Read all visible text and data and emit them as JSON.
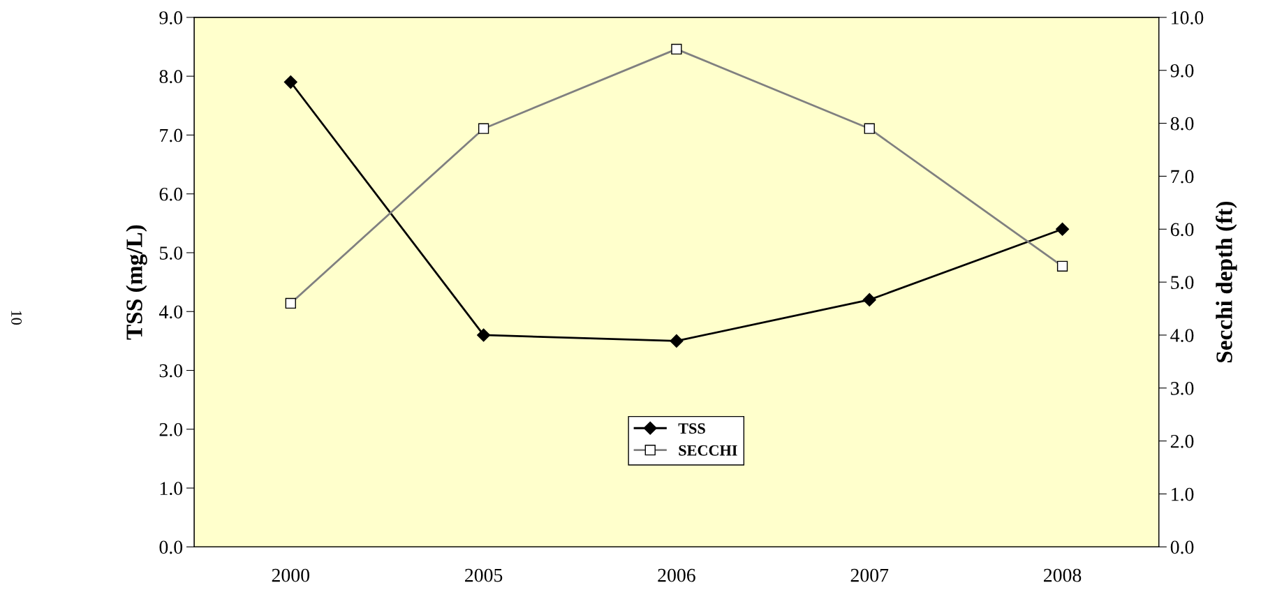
{
  "chart_data": {
    "type": "line",
    "categories": [
      "2000",
      "2005",
      "2006",
      "2007",
      "2008"
    ],
    "series": [
      {
        "name": "TSS",
        "color": "#000000",
        "values": [
          7.9,
          3.6,
          3.5,
          4.2,
          5.4
        ],
        "marker": "diamond"
      },
      {
        "name": "SECCHI",
        "color": "#808080",
        "values": [
          4.6,
          7.9,
          9.4,
          7.9,
          5.3
        ],
        "axis": "y2",
        "marker": "square"
      }
    ],
    "ylabel": "TSS (mg/L)",
    "y2label": "Secchi depth (ft)",
    "ylim": [
      0,
      9
    ],
    "yticks": [
      {
        "value": 0,
        "label": "0.0"
      },
      {
        "value": 1,
        "label": "1.0"
      },
      {
        "value": 2,
        "label": "2.0"
      },
      {
        "value": 3,
        "label": "3.0"
      },
      {
        "value": 4,
        "label": "4.0"
      },
      {
        "value": 5,
        "label": "5.0"
      },
      {
        "value": 6,
        "label": "6.0"
      },
      {
        "value": 7,
        "label": "7.0"
      },
      {
        "value": 8,
        "label": "8.0"
      },
      {
        "value": 9,
        "label": "9.0"
      }
    ],
    "y2lim": [
      0,
      10
    ],
    "y2ticks": [
      {
        "value": 0,
        "label": "0.0"
      },
      {
        "value": 1,
        "label": "1.0"
      },
      {
        "value": 2,
        "label": "2.0"
      },
      {
        "value": 3,
        "label": "3.0"
      },
      {
        "value": 4,
        "label": "4.0"
      },
      {
        "value": 5,
        "label": "5.0"
      },
      {
        "value": 6,
        "label": "6.0"
      },
      {
        "value": 7,
        "label": "7.0"
      },
      {
        "value": 8,
        "label": "8.0"
      },
      {
        "value": 9,
        "label": "9.0"
      },
      {
        "value": 10,
        "label": "10.0"
      }
    ],
    "annotations": [
      "10"
    ],
    "legend": "bottom",
    "grid": false,
    "line_style": "solid"
  }
}
